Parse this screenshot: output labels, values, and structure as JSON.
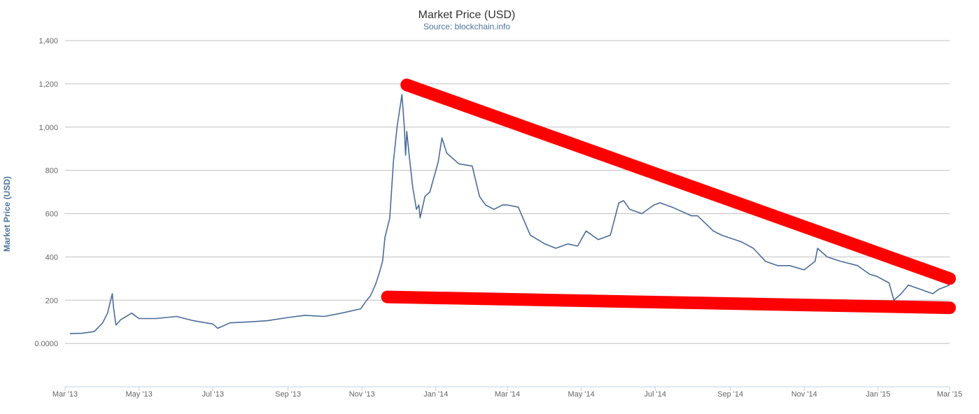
{
  "chart_data": {
    "type": "line",
    "title": "Market Price (USD)",
    "subtitle": "Source: blockchain.info",
    "ylabel": "Market Price (USD)",
    "xlabel": "",
    "ylim": [
      -200,
      1400
    ],
    "y_ticks": [
      0,
      200,
      400,
      600,
      800,
      1000,
      1200,
      1400
    ],
    "y_tick_labels": [
      "0.0000",
      "200",
      "400",
      "600",
      "800",
      "1,000",
      "1,200",
      "1,400"
    ],
    "x_ticks": [
      "2013-03-01",
      "2013-05-01",
      "2013-07-01",
      "2013-09-01",
      "2013-11-01",
      "2014-01-01",
      "2014-03-01",
      "2014-05-01",
      "2014-07-01",
      "2014-09-01",
      "2014-11-01",
      "2015-01-01",
      "2015-03-01"
    ],
    "x_tick_labels": [
      "Mar '13",
      "May '13",
      "Jul '13",
      "Sep '13",
      "Nov '13",
      "Jan '14",
      "Mar '14",
      "May '14",
      "Jul '14",
      "Sep '14",
      "Nov '14",
      "Jan '15",
      "Mar '15"
    ],
    "grid": true,
    "legend": "none",
    "line_color": "#4a6c9b",
    "series": [
      {
        "x": [
          "2013-03-05",
          "2013-03-15",
          "2013-03-25",
          "2013-04-01",
          "2013-04-05",
          "2013-04-09",
          "2013-04-10",
          "2013-04-12",
          "2013-04-16",
          "2013-04-25",
          "2013-05-01",
          "2013-05-15",
          "2013-06-01",
          "2013-06-15",
          "2013-07-01",
          "2013-07-05",
          "2013-07-15",
          "2013-08-01",
          "2013-08-15",
          "2013-09-01",
          "2013-09-15",
          "2013-10-01",
          "2013-10-15",
          "2013-10-31",
          "2013-11-05",
          "2013-11-08",
          "2013-11-12",
          "2013-11-15",
          "2013-11-18",
          "2013-11-20",
          "2013-11-24",
          "2013-11-27",
          "2013-11-30",
          "2013-12-04",
          "2013-12-06",
          "2013-12-07",
          "2013-12-08",
          "2013-12-10",
          "2013-12-13",
          "2013-12-16",
          "2013-12-18",
          "2013-12-19",
          "2013-12-23",
          "2013-12-27",
          "2014-01-03",
          "2014-01-06",
          "2014-01-10",
          "2014-01-20",
          "2014-01-31",
          "2014-02-06",
          "2014-02-11",
          "2014-02-18",
          "2014-02-25",
          "2014-03-01",
          "2014-03-10",
          "2014-03-20",
          "2014-04-01",
          "2014-04-10",
          "2014-04-20",
          "2014-04-28",
          "2014-05-05",
          "2014-05-15",
          "2014-05-25",
          "2014-06-01",
          "2014-06-05",
          "2014-06-10",
          "2014-06-20",
          "2014-06-30",
          "2014-07-05",
          "2014-07-15",
          "2014-07-31",
          "2014-08-05",
          "2014-08-18",
          "2014-08-25",
          "2014-09-10",
          "2014-09-20",
          "2014-09-30",
          "2014-10-05",
          "2014-10-10",
          "2014-10-20",
          "2014-11-01",
          "2014-11-10",
          "2014-11-12",
          "2014-11-20",
          "2014-12-01",
          "2014-12-15",
          "2014-12-25",
          "2014-12-31",
          "2015-01-10",
          "2015-01-14",
          "2015-01-20",
          "2015-01-26",
          "2015-02-05",
          "2015-02-15",
          "2015-02-20",
          "2015-03-01"
        ],
        "y": [
          46,
          47,
          55,
          95,
          140,
          230,
          165,
          85,
          110,
          140,
          115,
          115,
          125,
          105,
          90,
          70,
          95,
          100,
          105,
          120,
          130,
          125,
          140,
          160,
          200,
          220,
          270,
          320,
          380,
          490,
          580,
          840,
          1000,
          1150,
          1000,
          870,
          980,
          870,
          720,
          620,
          640,
          580,
          680,
          700,
          840,
          950,
          880,
          830,
          820,
          680,
          640,
          620,
          640,
          640,
          630,
          500,
          460,
          440,
          460,
          450,
          520,
          480,
          500,
          650,
          660,
          620,
          600,
          640,
          650,
          630,
          590,
          590,
          520,
          500,
          470,
          440,
          380,
          370,
          360,
          360,
          340,
          380,
          440,
          400,
          380,
          360,
          320,
          310,
          280,
          200,
          230,
          270,
          250,
          230,
          250,
          270
        ]
      }
    ],
    "annotations": [
      {
        "type": "trend-line",
        "color": "#ff0000",
        "x": [
          "2013-12-08",
          "2015-03-01"
        ],
        "y": [
          1195,
          300
        ]
      },
      {
        "type": "trend-line",
        "color": "#ff0000",
        "x": [
          "2013-11-22",
          "2015-03-01"
        ],
        "y": [
          215,
          165
        ]
      }
    ]
  }
}
